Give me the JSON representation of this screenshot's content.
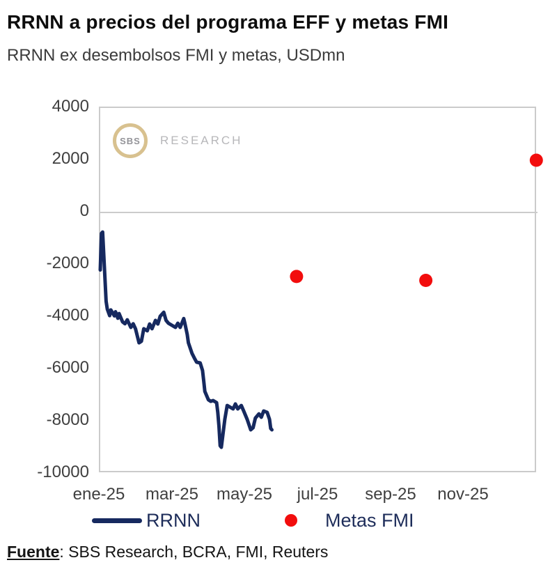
{
  "header": {
    "title": "RRNN a precios del programa EFF y metas FMI",
    "subtitle": "RRNN ex desembolsos FMI y metas, USDmn"
  },
  "watermark": {
    "logo_text": "SBS",
    "brand_text": "RESEARCH",
    "ring_color": "#d8c18f"
  },
  "legend": {
    "items": [
      {
        "label": "RRNN",
        "marker": "line",
        "color": "#16295f"
      },
      {
        "label": "Metas FMI",
        "marker": "dot",
        "color": "#f20d0d"
      }
    ]
  },
  "footer": {
    "source_label": "Fuente",
    "source_text": ": SBS Research, BCRA, FMI, Reuters"
  },
  "colors": {
    "line_navy": "#16295f",
    "dot_red": "#f20d0d",
    "grid": "#cbcbcb",
    "axis_text": "#3f3f3f",
    "title_text": "#0d0d0d",
    "subtitle_text": "#3b3b3b"
  },
  "chart_data": {
    "type": "line",
    "title": "RRNN a precios del programa EFF y metas FMI",
    "subtitle": "RRNN ex desembolsos FMI y metas, USDmn",
    "ylabel": "USDmn",
    "ylim": [
      -10000,
      4000
    ],
    "y_ticks": [
      4000,
      2000,
      0,
      -2000,
      -4000,
      -6000,
      -8000,
      -10000
    ],
    "x_ticks": [
      {
        "label": "ene-25",
        "month": 1
      },
      {
        "label": "mar-25",
        "month": 3
      },
      {
        "label": "may-25",
        "month": 5
      },
      {
        "label": "jul-25",
        "month": 7
      },
      {
        "label": "sep-25",
        "month": 9
      },
      {
        "label": "nov-25",
        "month": 11
      }
    ],
    "x_range": [
      "2025-01-01",
      "2025-12-31"
    ],
    "gridlines": [
      0
    ],
    "legend_position": "bottom",
    "series": [
      {
        "name": "RRNN",
        "type": "line",
        "color": "#16295f",
        "points": [
          [
            "2025-01-01",
            -2200
          ],
          [
            "2025-01-02",
            -800
          ],
          [
            "2025-01-03",
            -750
          ],
          [
            "2025-01-06",
            -3400
          ],
          [
            "2025-01-07",
            -3700
          ],
          [
            "2025-01-09",
            -3950
          ],
          [
            "2025-01-10",
            -3730
          ],
          [
            "2025-01-13",
            -3960
          ],
          [
            "2025-01-14",
            -3800
          ],
          [
            "2025-01-16",
            -4050
          ],
          [
            "2025-01-17",
            -3870
          ],
          [
            "2025-01-20",
            -4190
          ],
          [
            "2025-01-22",
            -4260
          ],
          [
            "2025-01-24",
            -4110
          ],
          [
            "2025-01-27",
            -4400
          ],
          [
            "2025-01-29",
            -4260
          ],
          [
            "2025-01-31",
            -4450
          ],
          [
            "2025-02-03",
            -4990
          ],
          [
            "2025-02-05",
            -4930
          ],
          [
            "2025-02-07",
            -4450
          ],
          [
            "2025-02-10",
            -4530
          ],
          [
            "2025-02-12",
            -4270
          ],
          [
            "2025-02-14",
            -4450
          ],
          [
            "2025-02-17",
            -4130
          ],
          [
            "2025-02-19",
            -4270
          ],
          [
            "2025-02-21",
            -3970
          ],
          [
            "2025-02-24",
            -3820
          ],
          [
            "2025-02-26",
            -4130
          ],
          [
            "2025-02-28",
            -4240
          ],
          [
            "2025-03-03",
            -4400
          ],
          [
            "2025-03-05",
            -4240
          ],
          [
            "2025-03-07",
            -4400
          ],
          [
            "2025-03-10",
            -4060
          ],
          [
            "2025-03-11",
            -4240
          ],
          [
            "2025-03-13",
            -4670
          ],
          [
            "2025-03-14",
            -4990
          ],
          [
            "2025-03-17",
            -5390
          ],
          [
            "2025-03-19",
            -5570
          ],
          [
            "2025-03-21",
            -5730
          ],
          [
            "2025-03-24",
            -5760
          ],
          [
            "2025-03-26",
            -6050
          ],
          [
            "2025-03-27",
            -6450
          ],
          [
            "2025-03-28",
            -6850
          ],
          [
            "2025-03-31",
            -7170
          ],
          [
            "2025-04-02",
            -7230
          ],
          [
            "2025-04-04",
            -7200
          ],
          [
            "2025-04-07",
            -7280
          ],
          [
            "2025-04-08",
            -7650
          ],
          [
            "2025-04-09",
            -8190
          ],
          [
            "2025-04-10",
            -8930
          ],
          [
            "2025-04-11",
            -8990
          ],
          [
            "2025-04-14",
            -7920
          ],
          [
            "2025-04-16",
            -7390
          ],
          [
            "2025-04-21",
            -7520
          ],
          [
            "2025-04-23",
            -7330
          ],
          [
            "2025-04-25",
            -7520
          ],
          [
            "2025-04-28",
            -7390
          ],
          [
            "2025-04-30",
            -7600
          ],
          [
            "2025-05-02",
            -7920
          ],
          [
            "2025-05-05",
            -8320
          ],
          [
            "2025-05-07",
            -8240
          ],
          [
            "2025-05-09",
            -7870
          ],
          [
            "2025-05-12",
            -7710
          ],
          [
            "2025-05-14",
            -7840
          ],
          [
            "2025-05-16",
            -7600
          ],
          [
            "2025-05-19",
            -7650
          ],
          [
            "2025-05-21",
            -7920
          ],
          [
            "2025-05-22",
            -8270
          ],
          [
            "2025-05-23",
            -8320
          ]
        ]
      },
      {
        "name": "Metas FMI",
        "type": "scatter",
        "color": "#f20d0d",
        "marker_radius": 9.5,
        "points": [
          [
            "2025-06-13",
            -2450
          ],
          [
            "2025-09-30",
            -2600
          ],
          [
            "2025-12-31",
            2000
          ]
        ]
      }
    ]
  }
}
